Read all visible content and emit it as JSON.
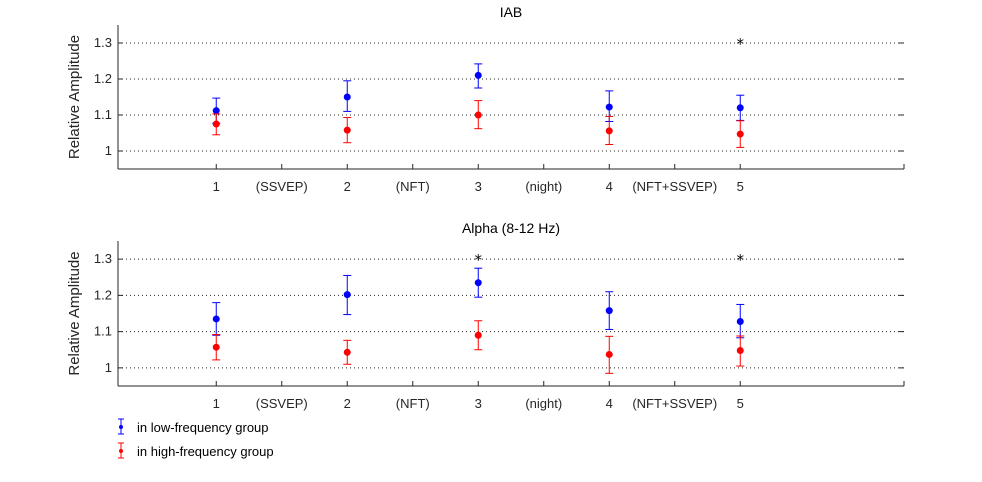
{
  "chart_data": [
    {
      "type": "scatter",
      "title": "IAB",
      "xlabel": "",
      "ylabel": "Relative Amplitude",
      "ylim": [
        0.95,
        1.35
      ],
      "yticks": [
        "1",
        "1.1",
        "1.2",
        "1.3"
      ],
      "grid": "horizontal dotted",
      "categories": [
        "1",
        "(SSVEP)",
        "2",
        "(NFT)",
        "3",
        "(night)",
        "4",
        "(NFT+SSVEP)",
        "5"
      ],
      "x": [
        1,
        3,
        5,
        7,
        9
      ],
      "series": [
        {
          "name": "in low-frequency group",
          "color": "#0000ff",
          "values": [
            1.112,
            1.15,
            1.21,
            1.122,
            1.12
          ],
          "err_low": [
            0.035,
            0.04,
            0.035,
            0.04,
            0.035
          ],
          "err_high": [
            0.035,
            0.045,
            0.032,
            0.045,
            0.035
          ]
        },
        {
          "name": "in high-frequency group",
          "color": "#ff0000",
          "values": [
            1.075,
            1.058,
            1.1,
            1.056,
            1.047
          ],
          "err_low": [
            0.03,
            0.035,
            0.038,
            0.038,
            0.037
          ],
          "err_high": [
            0.028,
            0.035,
            0.04,
            0.04,
            0.037
          ]
        }
      ],
      "significance": [
        {
          "x": 9,
          "y": 1.3,
          "symbol": "*"
        }
      ]
    },
    {
      "type": "scatter",
      "title": "Alpha (8-12 Hz)",
      "xlabel": "",
      "ylabel": "Relative Amplitude",
      "ylim": [
        0.95,
        1.35
      ],
      "yticks": [
        "1",
        "1.1",
        "1.2",
        "1.3"
      ],
      "grid": "horizontal dotted",
      "categories": [
        "1",
        "(SSVEP)",
        "2",
        "(NFT)",
        "3",
        "(night)",
        "4",
        "(NFT+SSVEP)",
        "5"
      ],
      "x": [
        1,
        3,
        5,
        7,
        9
      ],
      "series": [
        {
          "name": "in low-frequency group",
          "color": "#0000ff",
          "values": [
            1.135,
            1.202,
            1.235,
            1.158,
            1.128
          ],
          "err_low": [
            0.045,
            0.055,
            0.04,
            0.052,
            0.045
          ],
          "err_high": [
            0.045,
            0.053,
            0.04,
            0.052,
            0.047
          ]
        },
        {
          "name": "in high-frequency group",
          "color": "#ff0000",
          "values": [
            1.057,
            1.043,
            1.09,
            1.037,
            1.048
          ],
          "err_low": [
            0.035,
            0.033,
            0.04,
            0.052,
            0.043
          ],
          "err_high": [
            0.035,
            0.033,
            0.04,
            0.05,
            0.04
          ]
        }
      ],
      "significance": [
        {
          "x": 5,
          "y": 1.3,
          "symbol": "*"
        },
        {
          "x": 9,
          "y": 1.3,
          "symbol": "*"
        }
      ]
    }
  ],
  "legend": {
    "placement": "bottom-left",
    "items": [
      {
        "label": "in low-frequency group",
        "color": "#0000ff"
      },
      {
        "label": "in high-frequency group",
        "color": "#ff0000"
      }
    ]
  }
}
